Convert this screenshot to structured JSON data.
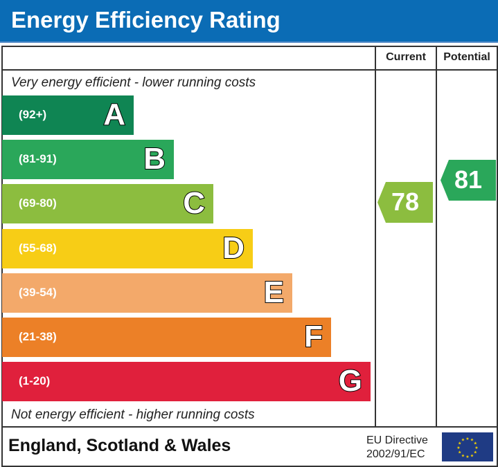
{
  "header": {
    "title": "Energy Efficiency Rating"
  },
  "columns": {
    "current": "Current",
    "potential": "Potential"
  },
  "notes": {
    "top": "Very energy efficient - lower running costs",
    "bottom": "Not energy efficient - higher running costs"
  },
  "chart_data": {
    "type": "bar",
    "categories": [
      "A",
      "B",
      "C",
      "D",
      "E",
      "F",
      "G"
    ],
    "ranges": [
      "(92+)",
      "(81-91)",
      "(69-80)",
      "(55-68)",
      "(39-54)",
      "(21-38)",
      "(1-20)"
    ],
    "colors": [
      "#0f8553",
      "#2aa75a",
      "#8cbd3f",
      "#f7cd16",
      "#f3a96a",
      "#ec8027",
      "#e0203c"
    ],
    "current": {
      "value": "78",
      "band": "C",
      "color": "#8cbd3f"
    },
    "potential": {
      "value": "81",
      "band": "B",
      "color": "#2aa75a"
    }
  },
  "footer": {
    "region": "England, Scotland & Wales",
    "directive_line1": "EU Directive",
    "directive_line2": "2002/91/EC"
  }
}
